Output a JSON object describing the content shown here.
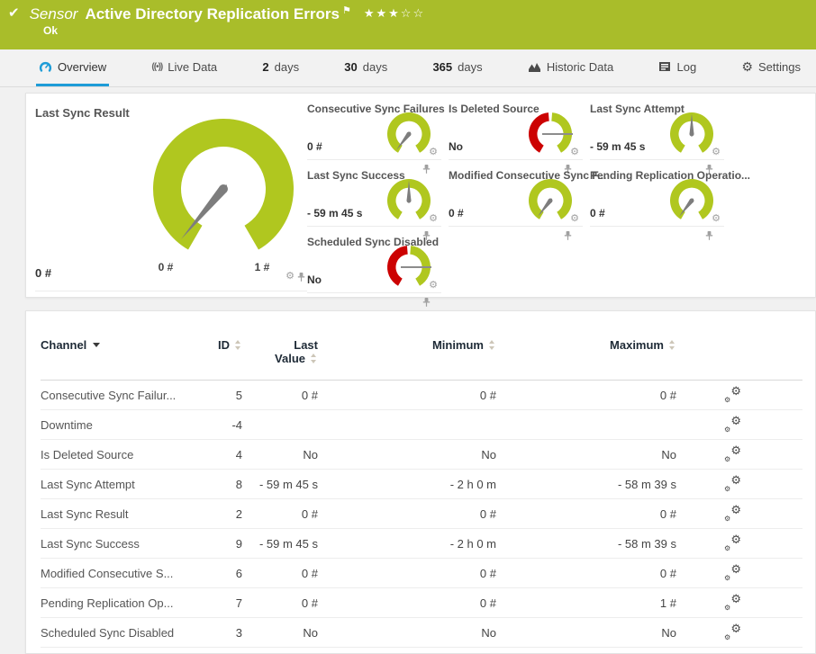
{
  "colors": {
    "status_green": "#a9bd2a",
    "gauge_green": "#b0c71f",
    "gauge_red": "#cc0202",
    "accent_blue": "#1e9cd7",
    "needle_gray": "#7d7d7d"
  },
  "header": {
    "type_label": "Sensor",
    "title": "Active Directory Replication Errors",
    "status": "Ok",
    "stars_filled": 3,
    "stars_total": 5
  },
  "tabs": [
    {
      "label": "Overview",
      "icon": "gauge",
      "active": true
    },
    {
      "label": "Live Data",
      "icon": "live",
      "active": false
    },
    {
      "num": "2",
      "label": "days",
      "active": false
    },
    {
      "num": "30",
      "label": "days",
      "active": false
    },
    {
      "num": "365",
      "label": "days",
      "active": false
    },
    {
      "label": "Historic Data",
      "icon": "chart",
      "active": false
    },
    {
      "label": "Log",
      "icon": "log",
      "active": false
    },
    {
      "label": "Settings",
      "icon": "gear",
      "active": false
    }
  ],
  "overview": {
    "main_gauge": {
      "title": "Last Sync Result",
      "value": "0 #",
      "scale_min_label": "0 #",
      "scale_max_label": "1 #",
      "type": "needle",
      "needle_deg": 230
    },
    "gauges": [
      {
        "title": "Consecutive Sync Failures",
        "value": "0 #",
        "type": "needle",
        "needle_deg": 232
      },
      {
        "title": "Is Deleted Source",
        "value": "No",
        "type": "binary",
        "needle_deg": 0
      },
      {
        "title": "Last Sync Attempt",
        "value": "- 59 m 45 s",
        "type": "needle",
        "needle_deg": 90
      },
      {
        "title": "Last Sync Success",
        "value": "- 59 m 45 s",
        "type": "needle",
        "needle_deg": 90
      },
      {
        "title": "Modified Consecutive Sync F...",
        "value": "0 #",
        "type": "needle",
        "needle_deg": 232
      },
      {
        "title": "Pending Replication Operatio...",
        "value": "0 #",
        "type": "needle",
        "needle_deg": 232
      },
      {
        "title": "Scheduled Sync Disabled",
        "value": "No",
        "type": "binary",
        "needle_deg": 0
      }
    ]
  },
  "table": {
    "headers": {
      "channel": "Channel",
      "id": "ID",
      "last_line1": "Last",
      "last_line2": "Value",
      "minimum": "Minimum",
      "maximum": "Maximum"
    },
    "rows": [
      {
        "channel": "Consecutive Sync Failur...",
        "id": "5",
        "last": "0 #",
        "min": "0 #",
        "max": "0 #"
      },
      {
        "channel": "Downtime",
        "id": "-4",
        "last": "",
        "min": "",
        "max": ""
      },
      {
        "channel": "Is Deleted Source",
        "id": "4",
        "last": "No",
        "min": "No",
        "max": "No"
      },
      {
        "channel": "Last Sync Attempt",
        "id": "8",
        "last": "- 59 m 45 s",
        "min": "- 2 h 0 m",
        "max": "- 58 m 39 s"
      },
      {
        "channel": "Last Sync Result",
        "id": "2",
        "last": "0 #",
        "min": "0 #",
        "max": "0 #"
      },
      {
        "channel": "Last Sync Success",
        "id": "9",
        "last": "- 59 m 45 s",
        "min": "- 2 h 0 m",
        "max": "- 58 m 39 s"
      },
      {
        "channel": "Modified Consecutive S...",
        "id": "6",
        "last": "0 #",
        "min": "0 #",
        "max": "0 #"
      },
      {
        "channel": "Pending Replication Op...",
        "id": "7",
        "last": "0 #",
        "min": "0 #",
        "max": "1 #"
      },
      {
        "channel": "Scheduled Sync Disabled",
        "id": "3",
        "last": "No",
        "min": "No",
        "max": "No"
      }
    ]
  }
}
